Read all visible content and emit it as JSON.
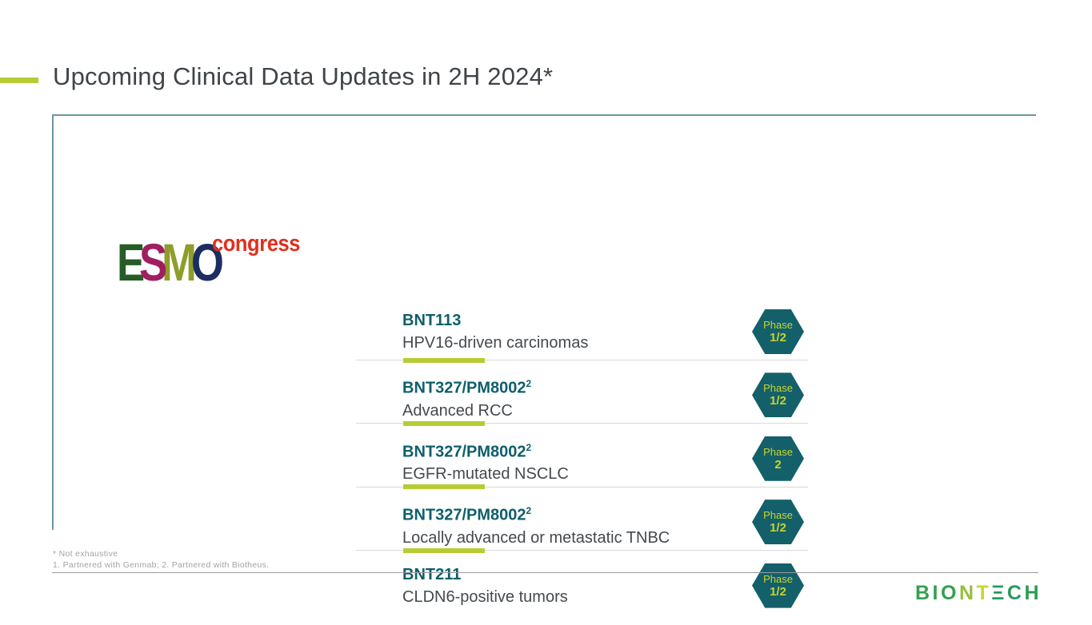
{
  "slide": {
    "title": "Upcoming Clinical Data Updates in 2H 2024*"
  },
  "esmo_logo": {
    "word_letters": [
      {
        "char": "E",
        "color": "#265c26"
      },
      {
        "char": "S",
        "color": "#a11e60"
      },
      {
        "char": "M",
        "color": "#8f9d2b"
      },
      {
        "char": "O",
        "color": "#1b2d62"
      }
    ],
    "congress_label": "congress",
    "congress_color": "#e0301e"
  },
  "trials": [
    {
      "name": "BNT113",
      "superscript": "",
      "indication": "HPV16-driven carcinomas",
      "phase_label": "Phase",
      "phase_value": "1/2"
    },
    {
      "name": "BNT327/PM8002",
      "superscript": "2",
      "indication": "Advanced RCC",
      "phase_label": "Phase",
      "phase_value": "1/2"
    },
    {
      "name": "BNT327/PM8002",
      "superscript": "2",
      "indication": "EGFR-mutated NSCLC",
      "phase_label": "Phase",
      "phase_value": "2"
    },
    {
      "name": "BNT327/PM8002",
      "superscript": "2",
      "indication": "Locally advanced or metastatic TNBC",
      "phase_label": "Phase",
      "phase_value": "1/2"
    },
    {
      "name": "BNT211",
      "superscript": "",
      "indication": "CLDN6-positive tumors",
      "phase_label": "Phase",
      "phase_value": "1/2"
    }
  ],
  "footnotes": [
    "* Not exhaustive",
    "1. Partnered with Genmab; 2. Partnered with Biotheus."
  ],
  "biontech_logo": {
    "letters": [
      {
        "char": "B",
        "color": "#33a04f"
      },
      {
        "char": "I",
        "color": "#33a04f"
      },
      {
        "char": "O",
        "color": "#33a04f"
      },
      {
        "char": "N",
        "color": "#95bf3b"
      },
      {
        "char": "T",
        "color": "#c9d52f"
      },
      {
        "char": "Ξ",
        "color": "#289b5d"
      },
      {
        "char": "C",
        "color": "#289b5d"
      },
      {
        "char": "H",
        "color": "#2d9d52"
      }
    ]
  },
  "colors": {
    "accent_lime": "#b7cc33",
    "heading_teal": "#0e5f6b",
    "hex_teal": "#14606a",
    "hex_text": "#c6d42e",
    "box_border": "#6b96a4",
    "separator": "#d9d9d9",
    "title_gray": "#3f444a",
    "body_gray": "#45494d",
    "footnote_gray": "#a0a4a6",
    "bottom_rule": "#9b9b9b"
  }
}
